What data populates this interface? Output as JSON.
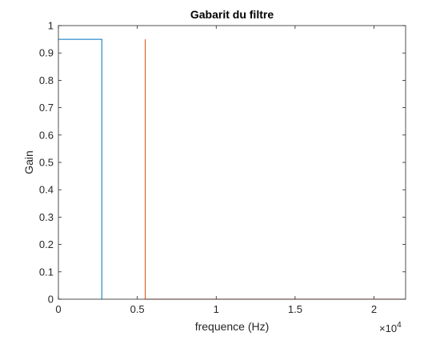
{
  "chart_data": {
    "type": "line",
    "title": "Gabarit du filtre",
    "xlabel": "frequence (Hz)",
    "ylabel": "Gain",
    "x_exponent_label": "×10",
    "x_exponent_power": "4",
    "xlim": [
      0,
      22000
    ],
    "ylim": [
      0,
      1
    ],
    "x_ticks": [
      0,
      5000,
      10000,
      15000,
      20000
    ],
    "x_tick_labels": [
      "0",
      "0.5",
      "1",
      "1.5",
      "2"
    ],
    "y_ticks": [
      0,
      0.1,
      0.2,
      0.3,
      0.4,
      0.5,
      0.6,
      0.7,
      0.8,
      0.9,
      1
    ],
    "y_tick_labels": [
      "0",
      "0.1",
      "0.2",
      "0.3",
      "0.4",
      "0.5",
      "0.6",
      "0.7",
      "0.8",
      "0.9",
      "1"
    ],
    "grid": false,
    "box": true,
    "series": [
      {
        "color": "#0072BD",
        "x": [
          0,
          2750,
          2750
        ],
        "y": [
          0.95,
          0.95,
          0
        ]
      },
      {
        "color": "#D95319",
        "x": [
          5500,
          5500,
          22000
        ],
        "y": [
          0.95,
          0,
          0
        ]
      }
    ]
  }
}
